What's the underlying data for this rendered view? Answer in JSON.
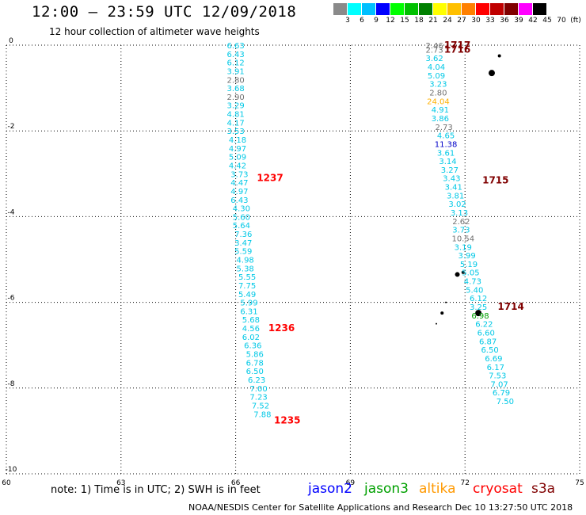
{
  "header": {
    "title": "12:00 — 23:59 UTC 12/09/2018",
    "subtitle": "12 hour collection of altimeter wave heights"
  },
  "colorbar": {
    "colors": [
      "#8a8a8a",
      "#00ffff",
      "#00c0ff",
      "#0000ff",
      "#00ff00",
      "#00c000",
      "#008000",
      "#ffff00",
      "#ffc000",
      "#ff8000",
      "#ff0000",
      "#c00000",
      "#800000",
      "#ff00ff",
      "#000000"
    ],
    "labels": [
      "3",
      "6",
      "9",
      "12",
      "15",
      "18",
      "21",
      "24",
      "27",
      "30",
      "33",
      "36",
      "39",
      "42",
      "45",
      "70",
      "(ft)"
    ]
  },
  "note": "note: 1) Time is in UTC; 2) SWH is in feet",
  "satellites": [
    {
      "name": "jason2",
      "color": "#0000ff"
    },
    {
      "name": "jason3",
      "color": "#00a000"
    },
    {
      "name": "altika",
      "color": "#ff9900"
    },
    {
      "name": "cryosat",
      "color": "#ff0000"
    },
    {
      "name": "s3a",
      "color": "#800000"
    }
  ],
  "footer": "NOAA/NESDIS Center for Satellite Applications and Research   Dec 10 13:27:50 UTC 2018",
  "chart_data": {
    "type": "scatter",
    "title": "12:00 — 23:59 UTC 12/09/2018",
    "subtitle": "12 hour collection of altimeter wave heights",
    "xlim": [
      60,
      75
    ],
    "ylim": [
      -10,
      0
    ],
    "x_ticks": [
      "60",
      "63",
      "66",
      "69",
      "72",
      "75"
    ],
    "y_ticks": [
      "0",
      "-2",
      "-4",
      "-6",
      "-8",
      "-10"
    ],
    "grid": true,
    "units": "SWH in feet",
    "tracks": [
      {
        "name": "track-west",
        "color_key": "cyan",
        "points": [
          {
            "x": 66.0,
            "y": 0.0,
            "v": "6.63",
            "c": "#00c8e6"
          },
          {
            "x": 66.0,
            "y": -0.2,
            "v": "6.43",
            "c": "#00c8e6"
          },
          {
            "x": 66.0,
            "y": -0.4,
            "v": "6.12",
            "c": "#00c8e6"
          },
          {
            "x": 66.0,
            "y": -0.6,
            "v": "3.91",
            "c": "#00c8e6"
          },
          {
            "x": 66.0,
            "y": -0.8,
            "v": "2.80",
            "c": "#707070"
          },
          {
            "x": 66.0,
            "y": -1.0,
            "v": "3.68",
            "c": "#00c8e6"
          },
          {
            "x": 66.0,
            "y": -1.2,
            "v": "2.90",
            "c": "#707070"
          },
          {
            "x": 66.0,
            "y": -1.4,
            "v": "3.29",
            "c": "#00c8e6"
          },
          {
            "x": 66.0,
            "y": -1.6,
            "v": "4.81",
            "c": "#00c8e6"
          },
          {
            "x": 66.0,
            "y": -1.8,
            "v": "4.17",
            "c": "#00c8e6"
          },
          {
            "x": 66.0,
            "y": -2.0,
            "v": "3.53",
            "c": "#00c8e6"
          },
          {
            "x": 66.05,
            "y": -2.2,
            "v": "4.18",
            "c": "#00c8e6"
          },
          {
            "x": 66.05,
            "y": -2.4,
            "v": "4.97",
            "c": "#00c8e6"
          },
          {
            "x": 66.05,
            "y": -2.6,
            "v": "5.09",
            "c": "#00c8e6"
          },
          {
            "x": 66.05,
            "y": -2.8,
            "v": "4.42",
            "c": "#00c8e6"
          },
          {
            "x": 66.1,
            "y": -3.0,
            "v": "3.73",
            "c": "#00c8e6"
          },
          {
            "x": 66.1,
            "y": -3.2,
            "v": "4.47",
            "c": "#00c8e6"
          },
          {
            "x": 66.1,
            "y": -3.4,
            "v": "4.97",
            "c": "#00c8e6"
          },
          {
            "x": 66.1,
            "y": -3.6,
            "v": "6.43",
            "c": "#00c8e6"
          },
          {
            "x": 66.15,
            "y": -3.8,
            "v": "4.30",
            "c": "#00c8e6"
          },
          {
            "x": 66.15,
            "y": -4.0,
            "v": "5.60",
            "c": "#00c8e6"
          },
          {
            "x": 66.15,
            "y": -4.2,
            "v": "5.64",
            "c": "#00c8e6"
          },
          {
            "x": 66.2,
            "y": -4.4,
            "v": "7.36",
            "c": "#00c8e6"
          },
          {
            "x": 66.2,
            "y": -4.6,
            "v": "3.47",
            "c": "#00c8e6"
          },
          {
            "x": 66.2,
            "y": -4.8,
            "v": "5.59",
            "c": "#00c8e6"
          },
          {
            "x": 66.25,
            "y": -5.0,
            "v": "4.98",
            "c": "#00c8e6"
          },
          {
            "x": 66.25,
            "y": -5.2,
            "v": "5.38",
            "c": "#00c8e6"
          },
          {
            "x": 66.3,
            "y": -5.4,
            "v": "5.55",
            "c": "#00c8e6"
          },
          {
            "x": 66.3,
            "y": -5.6,
            "v": "7.75",
            "c": "#00c8e6"
          },
          {
            "x": 66.3,
            "y": -5.8,
            "v": "5.49",
            "c": "#00c8e6"
          },
          {
            "x": 66.35,
            "y": -6.0,
            "v": "5.99",
            "c": "#00c8e6"
          },
          {
            "x": 66.35,
            "y": -6.2,
            "v": "6.31",
            "c": "#00c8e6"
          },
          {
            "x": 66.4,
            "y": -6.4,
            "v": "5.68",
            "c": "#00c8e6"
          },
          {
            "x": 66.4,
            "y": -6.6,
            "v": "4.56",
            "c": "#00c8e6"
          },
          {
            "x": 66.4,
            "y": -6.8,
            "v": "6.02",
            "c": "#00c8e6"
          },
          {
            "x": 66.45,
            "y": -7.0,
            "v": "6.36",
            "c": "#00c8e6"
          },
          {
            "x": 66.5,
            "y": -7.2,
            "v": "5.86",
            "c": "#00c8e6"
          },
          {
            "x": 66.5,
            "y": -7.4,
            "v": "6.78",
            "c": "#00c8e6"
          },
          {
            "x": 66.5,
            "y": -7.6,
            "v": "6.50",
            "c": "#00c8e6"
          },
          {
            "x": 66.55,
            "y": -7.8,
            "v": "6.23",
            "c": "#00c8e6"
          },
          {
            "x": 66.6,
            "y": -8.0,
            "v": "7.00",
            "c": "#00c8e6"
          },
          {
            "x": 66.6,
            "y": -8.2,
            "v": "7.23",
            "c": "#00c8e6"
          },
          {
            "x": 66.65,
            "y": -8.4,
            "v": "7.52",
            "c": "#00c8e6"
          },
          {
            "x": 66.7,
            "y": -8.6,
            "v": "7.88",
            "c": "#00c8e6"
          }
        ],
        "time_labels": [
          {
            "x": 66.9,
            "y": -3.1,
            "t": "1237",
            "c": "#ff0000"
          },
          {
            "x": 67.2,
            "y": -6.6,
            "t": "1236",
            "c": "#ff0000"
          },
          {
            "x": 67.35,
            "y": -8.75,
            "t": "1235",
            "c": "#ff0000"
          }
        ]
      },
      {
        "name": "track-east",
        "color_key": "cyan",
        "points": [
          {
            "x": 71.2,
            "y": 0.0,
            "v": "2.46",
            "c": "#707070"
          },
          {
            "x": 71.2,
            "y": -0.1,
            "v": "2.73",
            "c": "#707070"
          },
          {
            "x": 71.2,
            "y": -0.3,
            "v": "3.62",
            "c": "#00c8e6"
          },
          {
            "x": 71.25,
            "y": -0.5,
            "v": "4.04",
            "c": "#00c8e6"
          },
          {
            "x": 71.25,
            "y": -0.7,
            "v": "5.09",
            "c": "#00c8e6"
          },
          {
            "x": 71.3,
            "y": -0.9,
            "v": "3.23",
            "c": "#00c8e6"
          },
          {
            "x": 71.3,
            "y": -1.1,
            "v": "2.80",
            "c": "#707070"
          },
          {
            "x": 71.3,
            "y": -1.3,
            "v": "24.04",
            "c": "#ffb000"
          },
          {
            "x": 71.35,
            "y": -1.5,
            "v": "4.91",
            "c": "#00c8e6"
          },
          {
            "x": 71.35,
            "y": -1.7,
            "v": "3.86",
            "c": "#00c8e6"
          },
          {
            "x": 71.45,
            "y": -1.9,
            "v": "2.73",
            "c": "#707070"
          },
          {
            "x": 71.5,
            "y": -2.1,
            "v": "4.65",
            "c": "#00c8e6"
          },
          {
            "x": 71.5,
            "y": -2.3,
            "v": "11.38",
            "c": "#0000c8"
          },
          {
            "x": 71.5,
            "y": -2.5,
            "v": "3.61",
            "c": "#00c8e6"
          },
          {
            "x": 71.55,
            "y": -2.7,
            "v": "3.14",
            "c": "#00c8e6"
          },
          {
            "x": 71.6,
            "y": -2.9,
            "v": "3.27",
            "c": "#00c8e6"
          },
          {
            "x": 71.65,
            "y": -3.1,
            "v": "3.43",
            "c": "#00c8e6"
          },
          {
            "x": 71.7,
            "y": -3.3,
            "v": "3.41",
            "c": "#00c8e6"
          },
          {
            "x": 71.75,
            "y": -3.5,
            "v": "3.81",
            "c": "#00c8e6"
          },
          {
            "x": 71.8,
            "y": -3.7,
            "v": "3.02",
            "c": "#00c8e6"
          },
          {
            "x": 71.85,
            "y": -3.9,
            "v": "3.13",
            "c": "#00c8e6"
          },
          {
            "x": 71.9,
            "y": -4.1,
            "v": "2.62",
            "c": "#707070"
          },
          {
            "x": 71.9,
            "y": -4.3,
            "v": "3.73",
            "c": "#00c8e6"
          },
          {
            "x": 71.95,
            "y": -4.5,
            "v": "10.54",
            "c": "#707070"
          },
          {
            "x": 71.95,
            "y": -4.7,
            "v": "3.19",
            "c": "#00c8e6"
          },
          {
            "x": 72.05,
            "y": -4.9,
            "v": "3.99",
            "c": "#00c8e6"
          },
          {
            "x": 72.1,
            "y": -5.1,
            "v": "5.19",
            "c": "#00c8e6"
          },
          {
            "x": 72.15,
            "y": -5.3,
            "v": "5.05",
            "c": "#00c8e6"
          },
          {
            "x": 72.2,
            "y": -5.5,
            "v": "4.73",
            "c": "#00c8e6"
          },
          {
            "x": 72.25,
            "y": -5.7,
            "v": "5.40",
            "c": "#00c8e6"
          },
          {
            "x": 72.35,
            "y": -5.9,
            "v": "6.12",
            "c": "#00c8e6"
          },
          {
            "x": 72.35,
            "y": -6.1,
            "v": "3.25",
            "c": "#00c8e6"
          },
          {
            "x": 72.4,
            "y": -6.3,
            "v": "6.98",
            "c": "#00a000"
          },
          {
            "x": 72.5,
            "y": -6.5,
            "v": "6.22",
            "c": "#00c8e6"
          },
          {
            "x": 72.55,
            "y": -6.7,
            "v": "6.60",
            "c": "#00c8e6"
          },
          {
            "x": 72.6,
            "y": -6.9,
            "v": "6.87",
            "c": "#00c8e6"
          },
          {
            "x": 72.65,
            "y": -7.1,
            "v": "6.50",
            "c": "#00c8e6"
          },
          {
            "x": 72.75,
            "y": -7.3,
            "v": "6.69",
            "c": "#00c8e6"
          },
          {
            "x": 72.8,
            "y": -7.5,
            "v": "6.17",
            "c": "#00c8e6"
          },
          {
            "x": 72.85,
            "y": -7.7,
            "v": "7.53",
            "c": "#00c8e6"
          },
          {
            "x": 72.9,
            "y": -7.9,
            "v": "7.07",
            "c": "#00c8e6"
          },
          {
            "x": 72.95,
            "y": -8.1,
            "v": "6.79",
            "c": "#00c8e6"
          },
          {
            "x": 73.05,
            "y": -8.3,
            "v": "7.50",
            "c": "#00c8e6"
          }
        ],
        "time_labels": [
          {
            "x": 71.8,
            "y": 0.0,
            "t": "1717",
            "c": "#800000"
          },
          {
            "x": 71.8,
            "y": -0.1,
            "t": "1716",
            "c": "#800000"
          },
          {
            "x": 72.8,
            "y": -3.15,
            "t": "1715",
            "c": "#800000"
          },
          {
            "x": 73.2,
            "y": -6.1,
            "t": "1714",
            "c": "#800000"
          }
        ]
      }
    ],
    "islands": [
      {
        "x": 72.9,
        "y": -0.25,
        "r": 2
      },
      {
        "x": 72.7,
        "y": -0.65,
        "r": 4
      },
      {
        "x": 71.8,
        "y": -5.35,
        "r": 3
      },
      {
        "x": 71.95,
        "y": -5.3,
        "r": 2
      },
      {
        "x": 71.4,
        "y": -6.25,
        "r": 2
      },
      {
        "x": 71.5,
        "y": -6.0,
        "r": 1
      },
      {
        "x": 71.25,
        "y": -6.5,
        "r": 1
      },
      {
        "x": 72.35,
        "y": -6.25,
        "r": 4
      }
    ]
  }
}
